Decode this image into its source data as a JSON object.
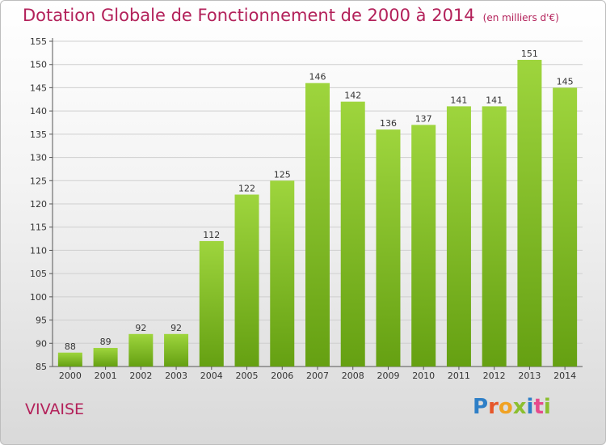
{
  "chart_title": "Dotation Globale de Fonctionnement de 2000 à 2014",
  "chart_subtitle": "(en milliers d'€)",
  "commune": "VIVAISE",
  "logo": {
    "text": "Proxiti",
    "letters": [
      {
        "char": "P",
        "color": "#2e7fc7"
      },
      {
        "char": "r",
        "color": "#e6572a"
      },
      {
        "char": "o",
        "color": "#f0a224"
      },
      {
        "char": "x",
        "color": "#8bbf2f"
      },
      {
        "char": "i",
        "color": "#2e7fc7"
      },
      {
        "char": "t",
        "color": "#e64a8c"
      },
      {
        "char": "i",
        "color": "#8bbf2f"
      }
    ]
  },
  "colors": {
    "title": "#b3215a",
    "bar_top": "#9ed53d",
    "bar_bottom": "#65a012",
    "grid": "#cfcfcf"
  },
  "chart_data": {
    "type": "bar",
    "title": "Dotation Globale de Fonctionnement de 2000 à 2014",
    "subtitle": "(en milliers d'€)",
    "categories": [
      "2000",
      "2001",
      "2002",
      "2003",
      "2004",
      "2005",
      "2006",
      "2007",
      "2008",
      "2009",
      "2010",
      "2011",
      "2012",
      "2013",
      "2014"
    ],
    "values": [
      88,
      89,
      92,
      92,
      112,
      122,
      125,
      146,
      142,
      136,
      137,
      141,
      141,
      151,
      145
    ],
    "ylim": [
      85,
      155
    ],
    "yticks": [
      85,
      90,
      95,
      100,
      105,
      110,
      115,
      120,
      125,
      130,
      135,
      140,
      145,
      150,
      155
    ],
    "xlabel": "",
    "ylabel": "",
    "grid": true
  }
}
